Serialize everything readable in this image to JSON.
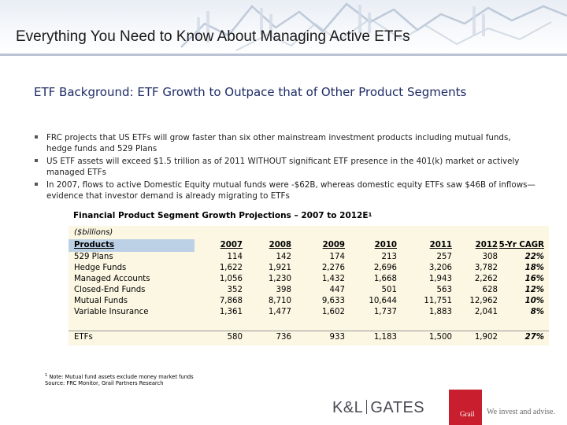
{
  "header": {
    "title": "Everything You Need to Know About Managing Active ETFs"
  },
  "section": {
    "title": "ETF Background: ETF Growth to Outpace that of Other Product Segments"
  },
  "bullets": [
    "FRC projects that US ETFs will grow faster than six other mainstream investment products including mutual funds, hedge funds and 529 Plans",
    "US ETF assets will exceed $1.5 trillion as of 2011 WITHOUT significant ETF presence in the 401(k) market or actively managed ETFs",
    "In 2007, flows to active Domestic Equity mutual funds were -$62B, whereas domestic equity ETFs saw $46B of inflows—evidence that investor demand is already migrating to ETFs"
  ],
  "table": {
    "title": "Financial Product Segment Growth Projections – 2007 to 2012E",
    "note_marker": "1",
    "units": "($billions)",
    "headers": [
      "Products",
      "2007",
      "2008",
      "2009",
      "2010",
      "2011",
      "2012",
      "5-Yr CAGR"
    ],
    "rows": [
      [
        "529 Plans",
        "114",
        "142",
        "174",
        "213",
        "257",
        "308",
        "22%"
      ],
      [
        "Hedge Funds",
        "1,622",
        "1,921",
        "2,276",
        "2,696",
        "3,206",
        "3,782",
        "18%"
      ],
      [
        "Managed Accounts",
        "1,056",
        "1,230",
        "1,432",
        "1,668",
        "1,943",
        "2,262",
        "16%"
      ],
      [
        "Closed-End Funds",
        "352",
        "398",
        "447",
        "501",
        "563",
        "628",
        "12%"
      ],
      [
        "Mutual Funds",
        "7,868",
        "8,710",
        "9,633",
        "10,644",
        "11,751",
        "12,962",
        "10%"
      ],
      [
        "Variable Insurance",
        "1,361",
        "1,477",
        "1,602",
        "1,737",
        "1,883",
        "2,041",
        "8%"
      ]
    ],
    "etf_row": [
      "ETFs",
      "580",
      "736",
      "933",
      "1,183",
      "1,500",
      "1,902",
      "27%"
    ]
  },
  "footnote": {
    "marker": "1",
    "note": "Note: Mutual fund assets exclude money market funds",
    "source": "Source: FRC Monitor, Grail Partners Research"
  },
  "logos": {
    "kl_left": "K&L",
    "kl_right": "GATES",
    "grail": "Grail",
    "tagline": "We invest and advise."
  },
  "colors": {
    "title_navy": "#1d2b66",
    "table_bg": "#fbf7e3",
    "header_band": "#bcd1e6",
    "grail_red": "#c81e2d"
  }
}
